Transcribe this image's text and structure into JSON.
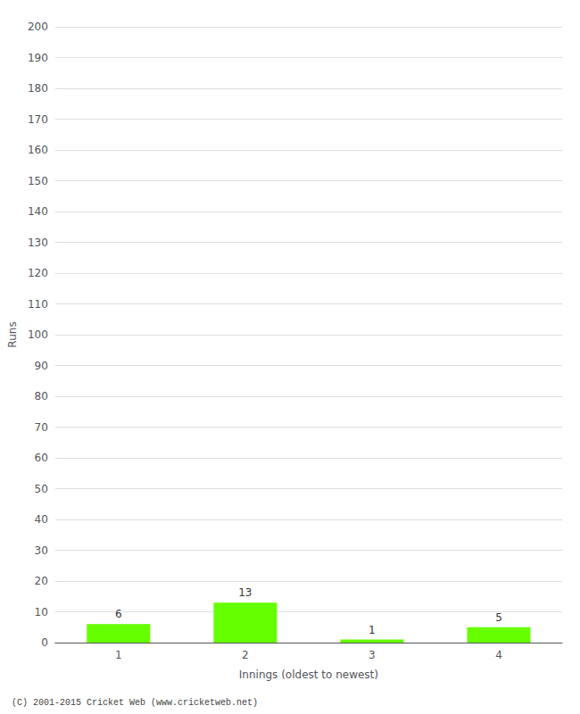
{
  "chart_data": {
    "type": "bar",
    "categories": [
      1,
      2,
      3,
      4
    ],
    "values": [
      6,
      13,
      1,
      5
    ],
    "color": "#66ff00",
    "xlabel": "Innings (oldest to newest)",
    "ylabel": "Runs",
    "ylim": [
      0,
      200
    ],
    "yticks": [
      0,
      10,
      20,
      30,
      40,
      50,
      60,
      70,
      80,
      90,
      100,
      110,
      120,
      130,
      140,
      150,
      160,
      170,
      180,
      190,
      200
    ],
    "grid": true,
    "data_labels": true,
    "footer": "(C) 2001-2015 Cricket Web (www.cricketweb.net)"
  }
}
